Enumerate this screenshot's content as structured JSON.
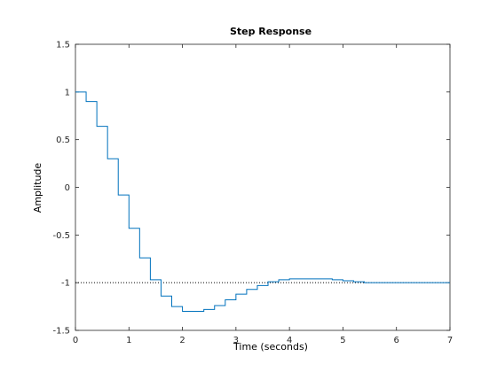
{
  "chart_data": {
    "type": "line",
    "title": "Step Response",
    "xlabel": "Time (seconds)",
    "ylabel": "Amplitude",
    "xlim": [
      0,
      7
    ],
    "ylim": [
      -1.5,
      1.5
    ],
    "xticks": [
      0,
      1,
      2,
      3,
      4,
      5,
      6,
      7
    ],
    "xtick_labels": [
      "0",
      "1",
      "2",
      "3",
      "4",
      "5",
      "6",
      "7"
    ],
    "yticks": [
      -1.5,
      -1,
      -0.5,
      0,
      0.5,
      1,
      1.5
    ],
    "ytick_labels": [
      "-1.5",
      "-1",
      "-0.5",
      "0",
      "0.5",
      "1",
      "1.5"
    ],
    "grid": false,
    "steady_state": -1,
    "series": [
      {
        "style": "stairs",
        "color": "#0072BD",
        "x": [
          0,
          0.2,
          0.4,
          0.6,
          0.8,
          1.0,
          1.2,
          1.4,
          1.6,
          1.8,
          2.0,
          2.2,
          2.4,
          2.6,
          2.8,
          3.0,
          3.2,
          3.4,
          3.6,
          3.8,
          4.0,
          4.2,
          4.4,
          4.6,
          4.8,
          5.0,
          5.2,
          5.4,
          5.6,
          5.8,
          6.0,
          6.2,
          6.4,
          6.6,
          6.8
        ],
        "y": [
          1.0,
          0.9,
          0.64,
          0.3,
          -0.08,
          -0.43,
          -0.74,
          -0.97,
          -1.14,
          -1.25,
          -1.3,
          -1.3,
          -1.28,
          -1.24,
          -1.18,
          -1.12,
          -1.07,
          -1.03,
          -0.99,
          -0.97,
          -0.96,
          -0.96,
          -0.96,
          -0.96,
          -0.97,
          -0.98,
          -0.99,
          -1.0,
          -1.0,
          -1.0,
          -1.0,
          -1.0,
          -1.0,
          -1.0,
          -1.0
        ]
      }
    ]
  }
}
